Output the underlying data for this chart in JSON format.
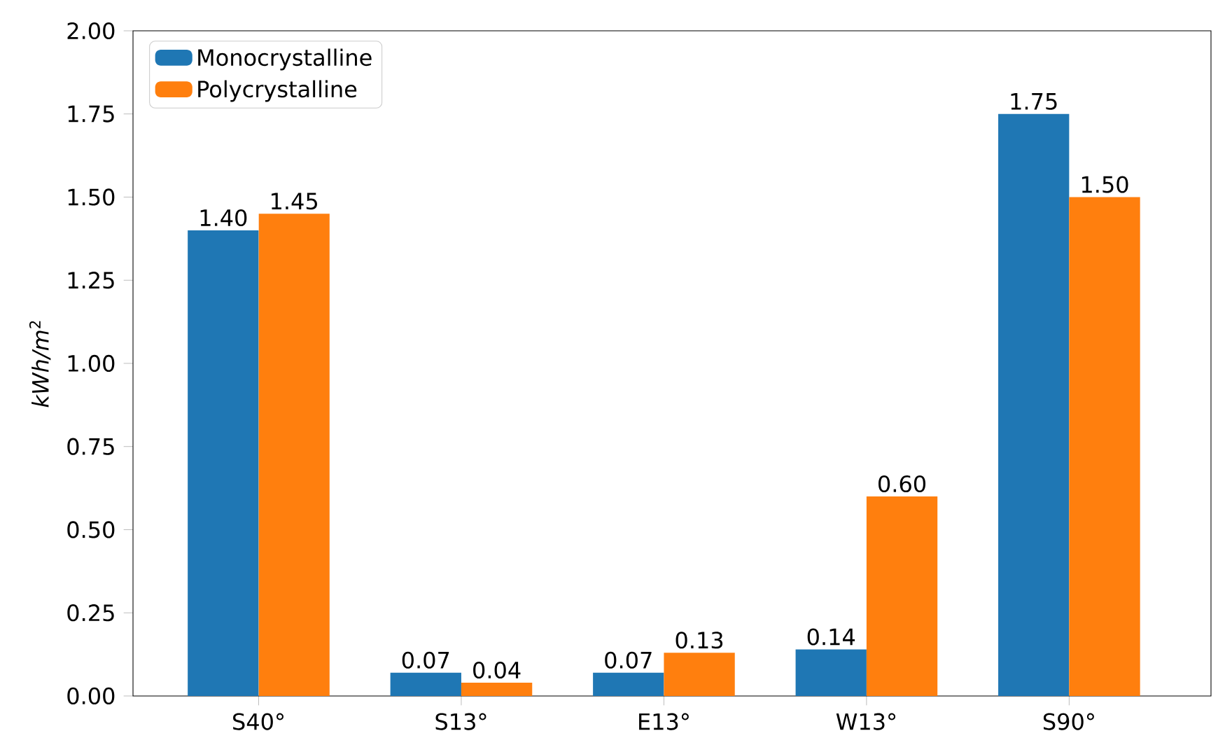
{
  "chart_data": {
    "type": "bar",
    "ylabel": "*kWh/m*$^{2}$",
    "categories": [
      "S40°",
      "S13°",
      "E13°",
      "W13°",
      "S90°"
    ],
    "series": [
      {
        "name": "Monocrystalline",
        "color": "#1f77b4",
        "values": [
          1.4,
          0.07,
          0.07,
          0.14,
          1.75
        ],
        "value_labels": [
          "1.40",
          "0.07",
          "0.07",
          "0.14",
          "1.75"
        ]
      },
      {
        "name": "Polycrystalline",
        "color": "#ff7f0e",
        "values": [
          1.45,
          0.04,
          0.13,
          0.6,
          1.5
        ],
        "value_labels": [
          "1.45",
          "0.04",
          "0.13",
          "0.60",
          "1.50"
        ]
      }
    ],
    "ylim": [
      0,
      2.0
    ],
    "yticks": [
      {
        "value": 0,
        "label": "0.00"
      },
      {
        "value": 0.25,
        "label": "0.25"
      },
      {
        "value": 0.5,
        "label": "0.50"
      },
      {
        "value": 0.75,
        "label": "0.75"
      },
      {
        "value": 1.0,
        "label": "1.00"
      },
      {
        "value": 1.25,
        "label": "1.25"
      },
      {
        "value": 1.5,
        "label": "1.50"
      },
      {
        "value": 1.75,
        "label": "1.75"
      },
      {
        "value": 2.0,
        "label": "2.00"
      }
    ],
    "legend": "top left",
    "grid": false
  }
}
